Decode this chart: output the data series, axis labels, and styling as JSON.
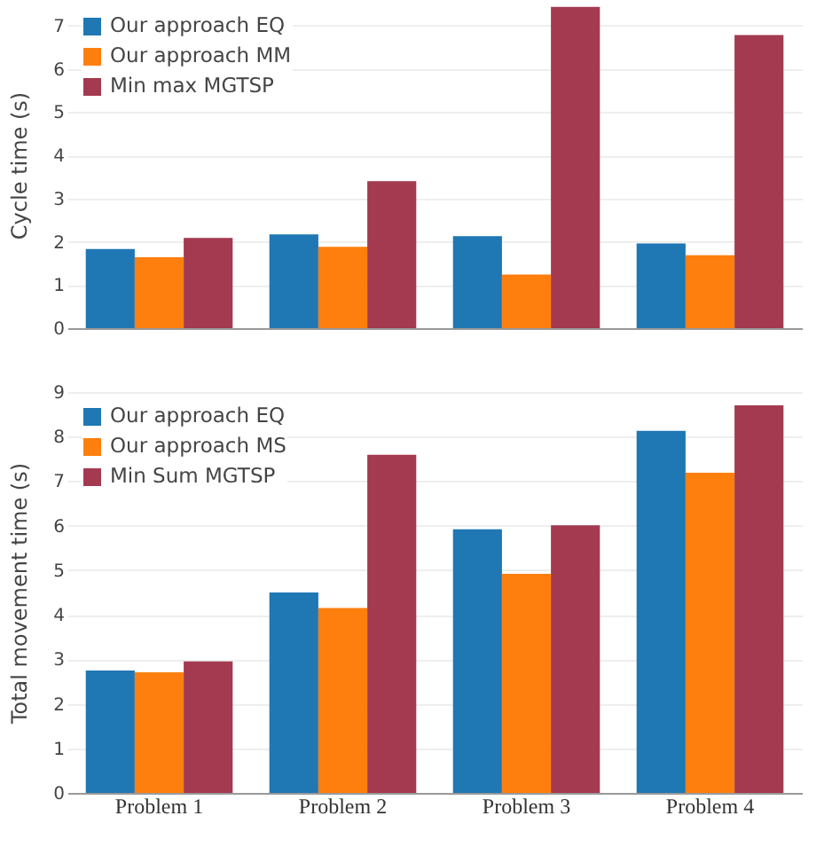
{
  "chart_data": [
    {
      "type": "bar",
      "ylabel": "Cycle time (s)",
      "categories": [
        null,
        null,
        null,
        null
      ],
      "ylim": [
        0,
        7.55
      ],
      "yticks": [
        0,
        1,
        2,
        3,
        4,
        5,
        6,
        7
      ],
      "grid": "y",
      "legend": "top left",
      "tick_labels": "y",
      "series": [
        {
          "name": "Our approach EQ",
          "color": "#1f77b4",
          "values": [
            1.83,
            2.17,
            2.13,
            1.96
          ]
        },
        {
          "name": "Our approach MM",
          "color": "#ff7f0e",
          "values": [
            1.64,
            1.88,
            1.24,
            1.69
          ]
        },
        {
          "name": "Min max MGTSP",
          "color": "#a33a50",
          "values": [
            2.09,
            3.4,
            7.43,
            6.78
          ]
        }
      ]
    },
    {
      "type": "bar",
      "ylabel": "Total movement time (s)",
      "categories": [
        "Problem 1",
        "Problem 2",
        "Problem 3",
        "Problem 4"
      ],
      "ylim": [
        0,
        9
      ],
      "yticks": [
        0,
        1,
        2,
        3,
        4,
        5,
        6,
        7,
        8,
        9
      ],
      "grid": "y",
      "legend": "top left",
      "series": [
        {
          "name": "Our approach EQ",
          "color": "#1f77b4",
          "values": [
            2.75,
            4.5,
            5.92,
            8.13
          ]
        },
        {
          "name": "Our approach MS",
          "color": "#ff7f0e",
          "values": [
            2.71,
            4.15,
            4.92,
            7.19
          ]
        },
        {
          "name": "Min Sum MGTSP",
          "color": "#a33a50",
          "values": [
            2.95,
            7.59,
            6.01,
            8.7
          ]
        }
      ]
    }
  ]
}
